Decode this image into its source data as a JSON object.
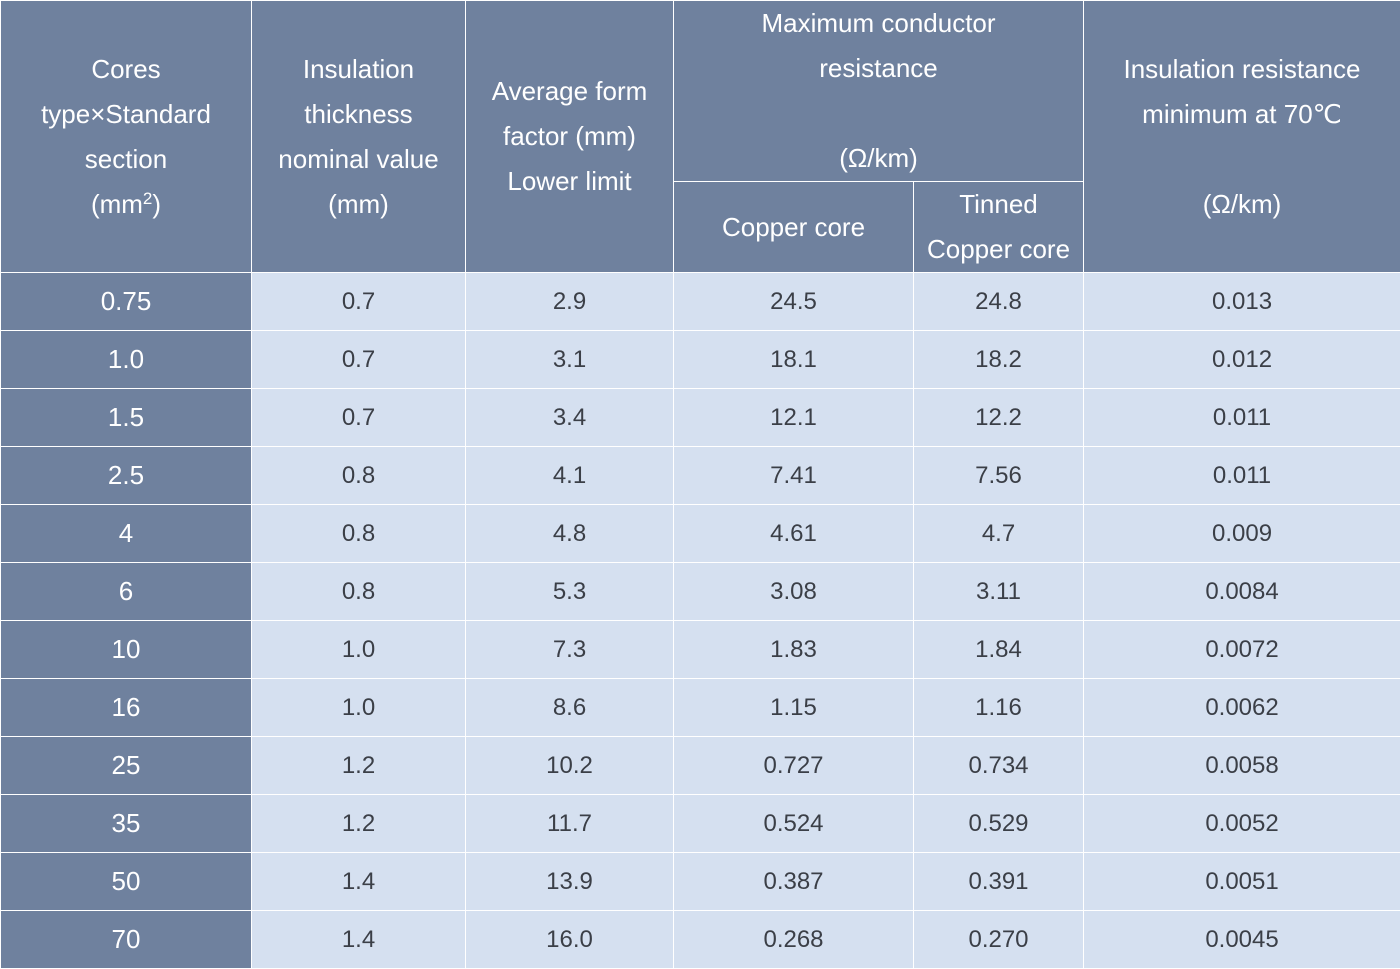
{
  "table": {
    "headers": {
      "col1": [
        "Cores",
        "type×Standard",
        "section"
      ],
      "col1_unit_prefix": "(mm",
      "col1_unit_sup": "2",
      "col1_unit_suffix": ")",
      "col2": [
        "Insulation",
        "thickness",
        "nominal value",
        "(mm)"
      ],
      "col3": [
        "Average form",
        "factor (mm)",
        "Lower limit"
      ],
      "col4_group": [
        "Maximum conductor",
        "resistance",
        "",
        "(Ω/km)"
      ],
      "col4a": "Copper core",
      "col4b": [
        "Tinned",
        "Copper core"
      ],
      "col6": [
        "Insulation resistance",
        "minimum at 70℃",
        "",
        "(Ω/km)"
      ]
    },
    "rows": [
      {
        "section": "0.75",
        "thickness": "0.7",
        "form": "2.9",
        "copper": "24.5",
        "tinned": "24.8",
        "insulation": "0.013"
      },
      {
        "section": "1.0",
        "thickness": "0.7",
        "form": "3.1",
        "copper": "18.1",
        "tinned": "18.2",
        "insulation": "0.012"
      },
      {
        "section": "1.5",
        "thickness": "0.7",
        "form": "3.4",
        "copper": "12.1",
        "tinned": "12.2",
        "insulation": "0.011"
      },
      {
        "section": "2.5",
        "thickness": "0.8",
        "form": "4.1",
        "copper": "7.41",
        "tinned": "7.56",
        "insulation": "0.011"
      },
      {
        "section": "4",
        "thickness": "0.8",
        "form": "4.8",
        "copper": "4.61",
        "tinned": "4.7",
        "insulation": "0.009"
      },
      {
        "section": "6",
        "thickness": "0.8",
        "form": "5.3",
        "copper": "3.08",
        "tinned": "3.11",
        "insulation": "0.0084"
      },
      {
        "section": "10",
        "thickness": "1.0",
        "form": "7.3",
        "copper": "1.83",
        "tinned": "1.84",
        "insulation": "0.0072"
      },
      {
        "section": "16",
        "thickness": "1.0",
        "form": "8.6",
        "copper": "1.15",
        "tinned": "1.16",
        "insulation": "0.0062"
      },
      {
        "section": "25",
        "thickness": "1.2",
        "form": "10.2",
        "copper": "0.727",
        "tinned": "0.734",
        "insulation": "0.0058"
      },
      {
        "section": "35",
        "thickness": "1.2",
        "form": "11.7",
        "copper": "0.524",
        "tinned": "0.529",
        "insulation": "0.0052"
      },
      {
        "section": "50",
        "thickness": "1.4",
        "form": "13.9",
        "copper": "0.387",
        "tinned": "0.391",
        "insulation": "0.0051"
      },
      {
        "section": "70",
        "thickness": "1.4",
        "form": "16.0",
        "copper": "0.268",
        "tinned": "0.270",
        "insulation": "0.0045"
      }
    ],
    "colors": {
      "header_bg": "#6f819e",
      "cell_bg": "#d5e0f0",
      "border": "#ffffff"
    }
  }
}
